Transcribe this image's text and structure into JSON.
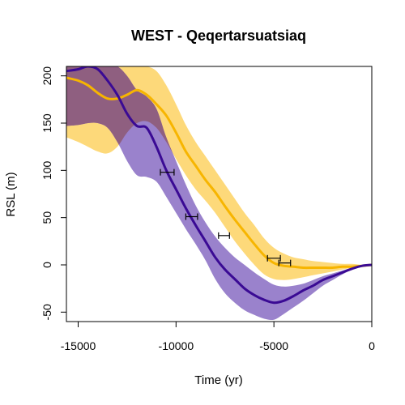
{
  "chart_data": {
    "type": "line",
    "title": "WEST - Qeqertarsuatsiaq",
    "xlabel": "Time (yr)",
    "ylabel": "RSL (m)",
    "xlim": [
      -15600,
      0
    ],
    "ylim": [
      -60,
      210
    ],
    "x_ticks": [
      -15000,
      -10000,
      -5000,
      0
    ],
    "y_ticks": [
      -50,
      0,
      50,
      100,
      150,
      200
    ],
    "grid": false,
    "colors": {
      "purple_line": "#3a0a94",
      "purple_band": "#9a82cc",
      "orange_line": "#f7b500",
      "orange_band": "#fdd97a",
      "overlap_band": "#8f5f80",
      "data_marker": "#000000"
    },
    "series": [
      {
        "color": "#3a0a94",
        "band_color": "#9a82cc",
        "x": [
          -15600,
          -15000,
          -14500,
          -14000,
          -13500,
          -13000,
          -12500,
          -12000,
          -11500,
          -11000,
          -10500,
          -10000,
          -9500,
          -9000,
          -8500,
          -8000,
          -7500,
          -7000,
          -6500,
          -6000,
          -5500,
          -5000,
          -4500,
          -4000,
          -3500,
          -3000,
          -2500,
          -2000,
          -1500,
          -1000,
          -500,
          0
        ],
        "y": [
          205,
          207,
          210,
          207,
          195,
          180,
          160,
          147,
          145,
          125,
          100,
          80,
          60,
          42,
          25,
          8,
          -5,
          -15,
          -25,
          -32,
          -37,
          -40,
          -38,
          -33,
          -27,
          -22,
          -16,
          -12,
          -8,
          -4,
          -1,
          0
        ],
        "lower": [
          147,
          148,
          150,
          150,
          145,
          130,
          110,
          95,
          93,
          88,
          72,
          55,
          38,
          22,
          5,
          -15,
          -30,
          -40,
          -48,
          -53,
          -57,
          -58,
          -52,
          -45,
          -38,
          -30,
          -22,
          -16,
          -10,
          -5,
          -1,
          0
        ],
        "upper": [
          210,
          210,
          210,
          210,
          210,
          210,
          200,
          185,
          178,
          165,
          135,
          110,
          85,
          63,
          45,
          30,
          18,
          8,
          0,
          -8,
          -15,
          -21,
          -23,
          -22,
          -20,
          -16,
          -12,
          -9,
          -6,
          -3,
          -1,
          0
        ]
      },
      {
        "color": "#f7b500",
        "band_color": "#fdd97a",
        "x": [
          -15600,
          -15000,
          -14500,
          -14000,
          -13500,
          -13000,
          -12500,
          -12000,
          -11500,
          -11000,
          -10500,
          -10000,
          -9500,
          -9000,
          -8500,
          -8000,
          -7500,
          -7000,
          -6500,
          -6000,
          -5500,
          -5000,
          -4500,
          -4000,
          -3500,
          -3000,
          -2500,
          -2000,
          -1500,
          -1000,
          -500,
          0
        ],
        "y": [
          198,
          195,
          190,
          182,
          176,
          176,
          180,
          185,
          180,
          170,
          158,
          140,
          120,
          105,
          90,
          77,
          62,
          48,
          35,
          22,
          10,
          2,
          -1,
          -2,
          -3,
          -3,
          -3,
          -3,
          -2,
          -2,
          -1,
          0
        ],
        "lower": [
          135,
          130,
          125,
          120,
          118,
          125,
          140,
          150,
          152,
          145,
          130,
          112,
          95,
          80,
          68,
          55,
          40,
          25,
          12,
          0,
          -10,
          -15,
          -16,
          -15,
          -13,
          -11,
          -9,
          -7,
          -5,
          -3,
          -1,
          0
        ],
        "upper": [
          210,
          210,
          210,
          210,
          210,
          210,
          210,
          210,
          210,
          205,
          190,
          170,
          148,
          130,
          115,
          100,
          85,
          70,
          55,
          42,
          28,
          18,
          12,
          8,
          6,
          4,
          3,
          2,
          1,
          1,
          0,
          0
        ]
      }
    ],
    "points": [
      {
        "x": -10450,
        "y": 98,
        "xerr": 350
      },
      {
        "x": -9200,
        "y": 51,
        "xerr": 300
      },
      {
        "x": -7550,
        "y": 31,
        "xerr": 280
      },
      {
        "x": -5000,
        "y": 7,
        "xerr": 330
      },
      {
        "x": -4450,
        "y": 2,
        "xerr": 300
      }
    ]
  }
}
